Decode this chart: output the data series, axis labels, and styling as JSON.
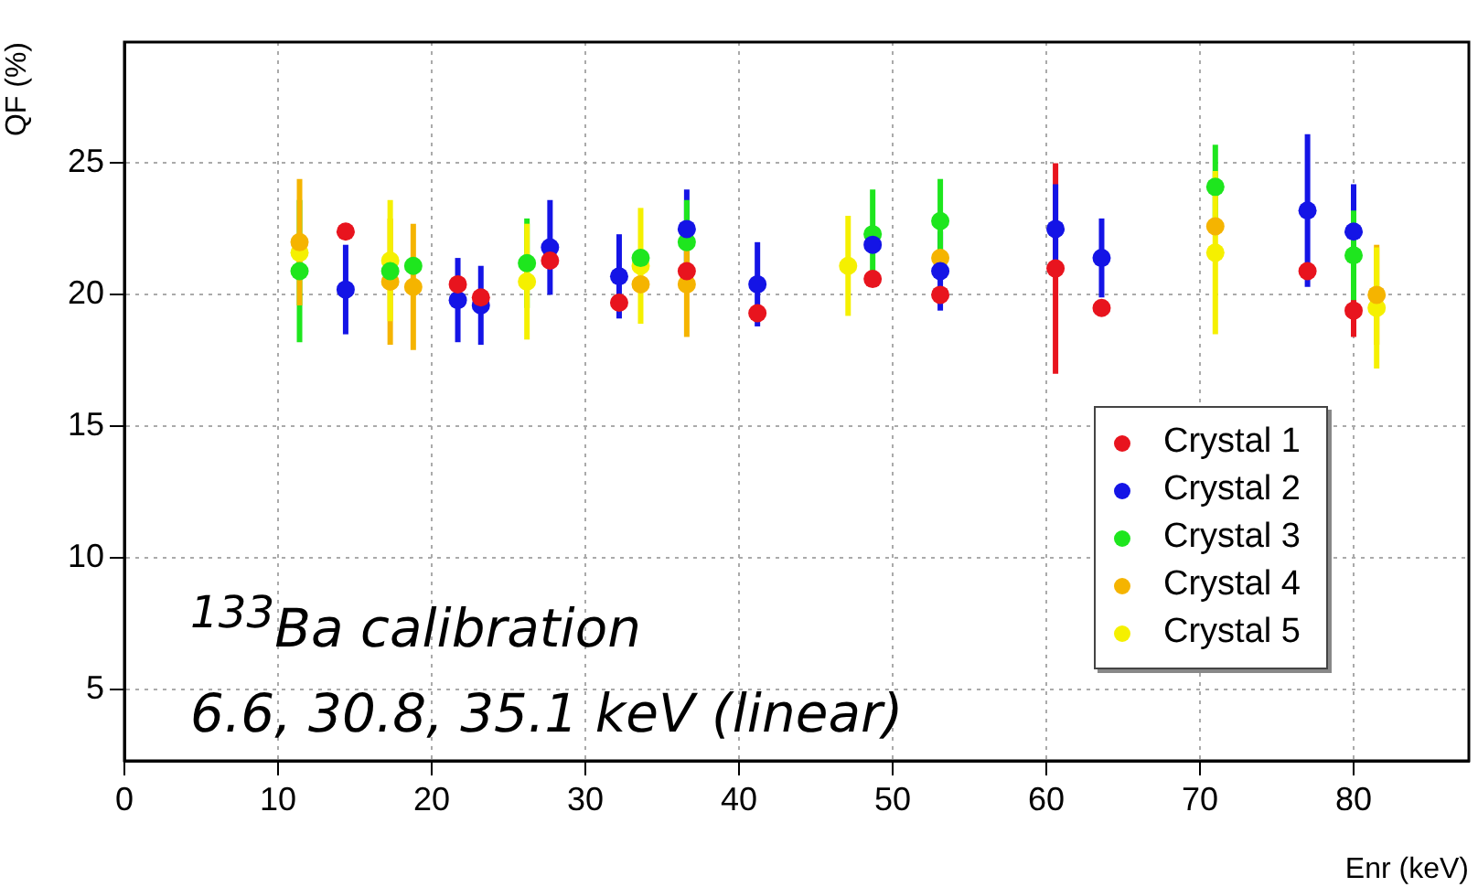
{
  "chart_data": {
    "type": "scatter",
    "xlabel": "Enr (keV)",
    "ylabel": "QF (%)",
    "xlim": [
      0,
      87.5
    ],
    "xticks": [
      0,
      10,
      20,
      30,
      40,
      50,
      60,
      70,
      80
    ],
    "ylim": [
      2.3,
      29.6
    ],
    "yticks": [
      5,
      10,
      15,
      20,
      25
    ],
    "grid": true,
    "legend": "bottom right",
    "marker": "circle",
    "annotations": [
      "$^{133}$Ba calibration",
      "6.6, 30.8, 35.1 keV (linear)"
    ],
    "series": [
      {
        "name": "Crystal 1",
        "color": "#e8141e",
        "x": [
          14.4,
          21.7,
          23.2,
          27.7,
          32.2,
          36.6,
          41.2,
          48.7,
          53.1,
          60.6,
          63.6,
          77.0,
          80.0
        ],
        "values": [
          22.4,
          20.4,
          19.9,
          21.3,
          19.7,
          20.9,
          19.3,
          20.6,
          20.0,
          21.0,
          19.5,
          20.9,
          19.4
        ],
        "errors": [
          null,
          null,
          null,
          null,
          null,
          null,
          null,
          null,
          null,
          4.0,
          null,
          null,
          1.0
        ]
      },
      {
        "name": "Crystal 2",
        "color": "#1414e6",
        "x": [
          14.4,
          21.7,
          23.2,
          27.7,
          32.2,
          36.6,
          41.2,
          48.7,
          53.1,
          60.6,
          63.6,
          77.0,
          80.0
        ],
        "values": [
          20.2,
          19.8,
          19.6,
          21.8,
          20.7,
          22.5,
          20.4,
          21.9,
          20.9,
          22.5,
          21.4,
          23.2,
          22.4
        ],
        "errors": [
          1.7,
          1.6,
          1.5,
          1.8,
          1.6,
          1.5,
          1.6,
          null,
          1.5,
          1.7,
          1.5,
          2.9,
          1.8
        ]
      },
      {
        "name": "Crystal 3",
        "color": "#1ee61e",
        "x": [
          11.4,
          17.3,
          18.8,
          26.2,
          33.6,
          36.6,
          48.7,
          53.1,
          71.0,
          80.0
        ],
        "values": [
          20.9,
          20.9,
          21.1,
          21.2,
          21.4,
          22.0,
          22.3,
          22.8,
          24.1,
          21.5
        ],
        "errors": [
          2.7,
          null,
          null,
          1.7,
          null,
          1.6,
          1.7,
          1.6,
          1.6,
          1.7
        ]
      },
      {
        "name": "Crystal 4",
        "color": "#f5b400",
        "x": [
          11.4,
          17.3,
          18.8,
          33.6,
          36.6,
          53.1,
          71.0,
          81.5
        ],
        "values": [
          22.0,
          20.5,
          20.3,
          20.4,
          20.4,
          21.4,
          22.6,
          20.0
        ],
        "errors": [
          2.4,
          2.4,
          2.4,
          null,
          2.0,
          null,
          null,
          1.9
        ]
      },
      {
        "name": "Crystal 5",
        "color": "#f5f000",
        "x": [
          11.4,
          17.3,
          18.8,
          26.2,
          33.6,
          36.6,
          47.1,
          71.0,
          81.5
        ],
        "values": [
          21.6,
          21.3,
          null,
          20.5,
          21.1,
          null,
          21.1,
          21.6,
          19.5
        ],
        "errors": [
          null,
          2.3,
          null,
          2.2,
          2.2,
          null,
          1.9,
          3.1,
          2.3
        ]
      }
    ]
  }
}
